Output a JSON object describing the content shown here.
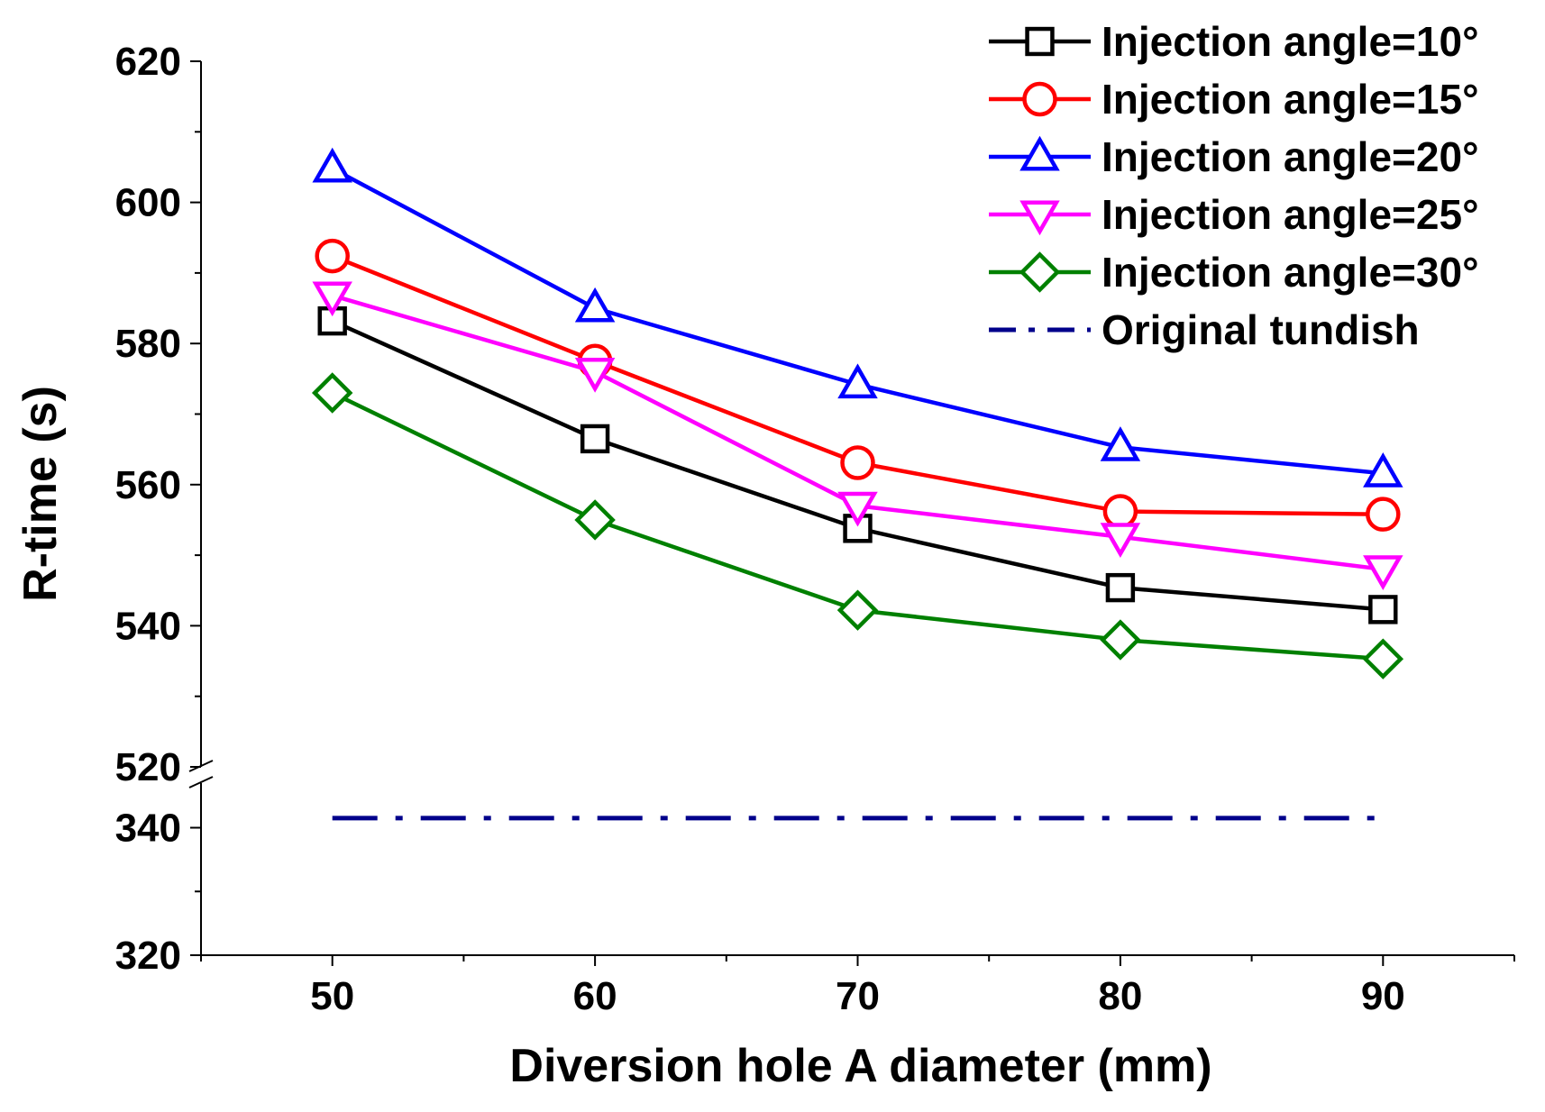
{
  "chart_data": {
    "type": "line",
    "title": "",
    "xlabel": "Diversion hole A diameter (mm)",
    "ylabel": "R-time (s)",
    "x": [
      50,
      60,
      70,
      80,
      90
    ],
    "xlim": [
      45,
      95
    ],
    "x_ticks": [
      "50",
      "60",
      "70",
      "80",
      "90"
    ],
    "y_upper_range": [
      520,
      620
    ],
    "y_lower_range": [
      320,
      347
    ],
    "y_upper_ticks": [
      "520",
      "540",
      "560",
      "580",
      "600",
      "620"
    ],
    "y_lower_ticks": [
      "320",
      "340"
    ],
    "axis_break": true,
    "legend_position": "top-right",
    "series": [
      {
        "name": "Injection angle=10°",
        "color": "#000000",
        "marker": "square",
        "values": [
          583.2,
          566.5,
          553.8,
          545.4,
          542.3
        ]
      },
      {
        "name": "Injection angle=15°",
        "color": "#ff0000",
        "marker": "circle",
        "values": [
          592.4,
          577.5,
          563.1,
          556.2,
          555.8
        ]
      },
      {
        "name": "Injection angle=20°",
        "color": "#0000ff",
        "marker": "triangle-up",
        "values": [
          604.8,
          585.0,
          574.2,
          565.3,
          561.6
        ]
      },
      {
        "name": "Injection angle=25°",
        "color": "#ff00ff",
        "marker": "triangle-down",
        "values": [
          586.8,
          576.0,
          557.0,
          552.6,
          548.0
        ]
      },
      {
        "name": "Injection angle=30°",
        "color": "#008000",
        "marker": "diamond",
        "values": [
          573.0,
          555.0,
          542.2,
          538.0,
          535.3
        ]
      }
    ],
    "reference": {
      "name": "Original tundish",
      "color": "#00008b",
      "style": "dash-dot",
      "value": 341.5
    }
  }
}
